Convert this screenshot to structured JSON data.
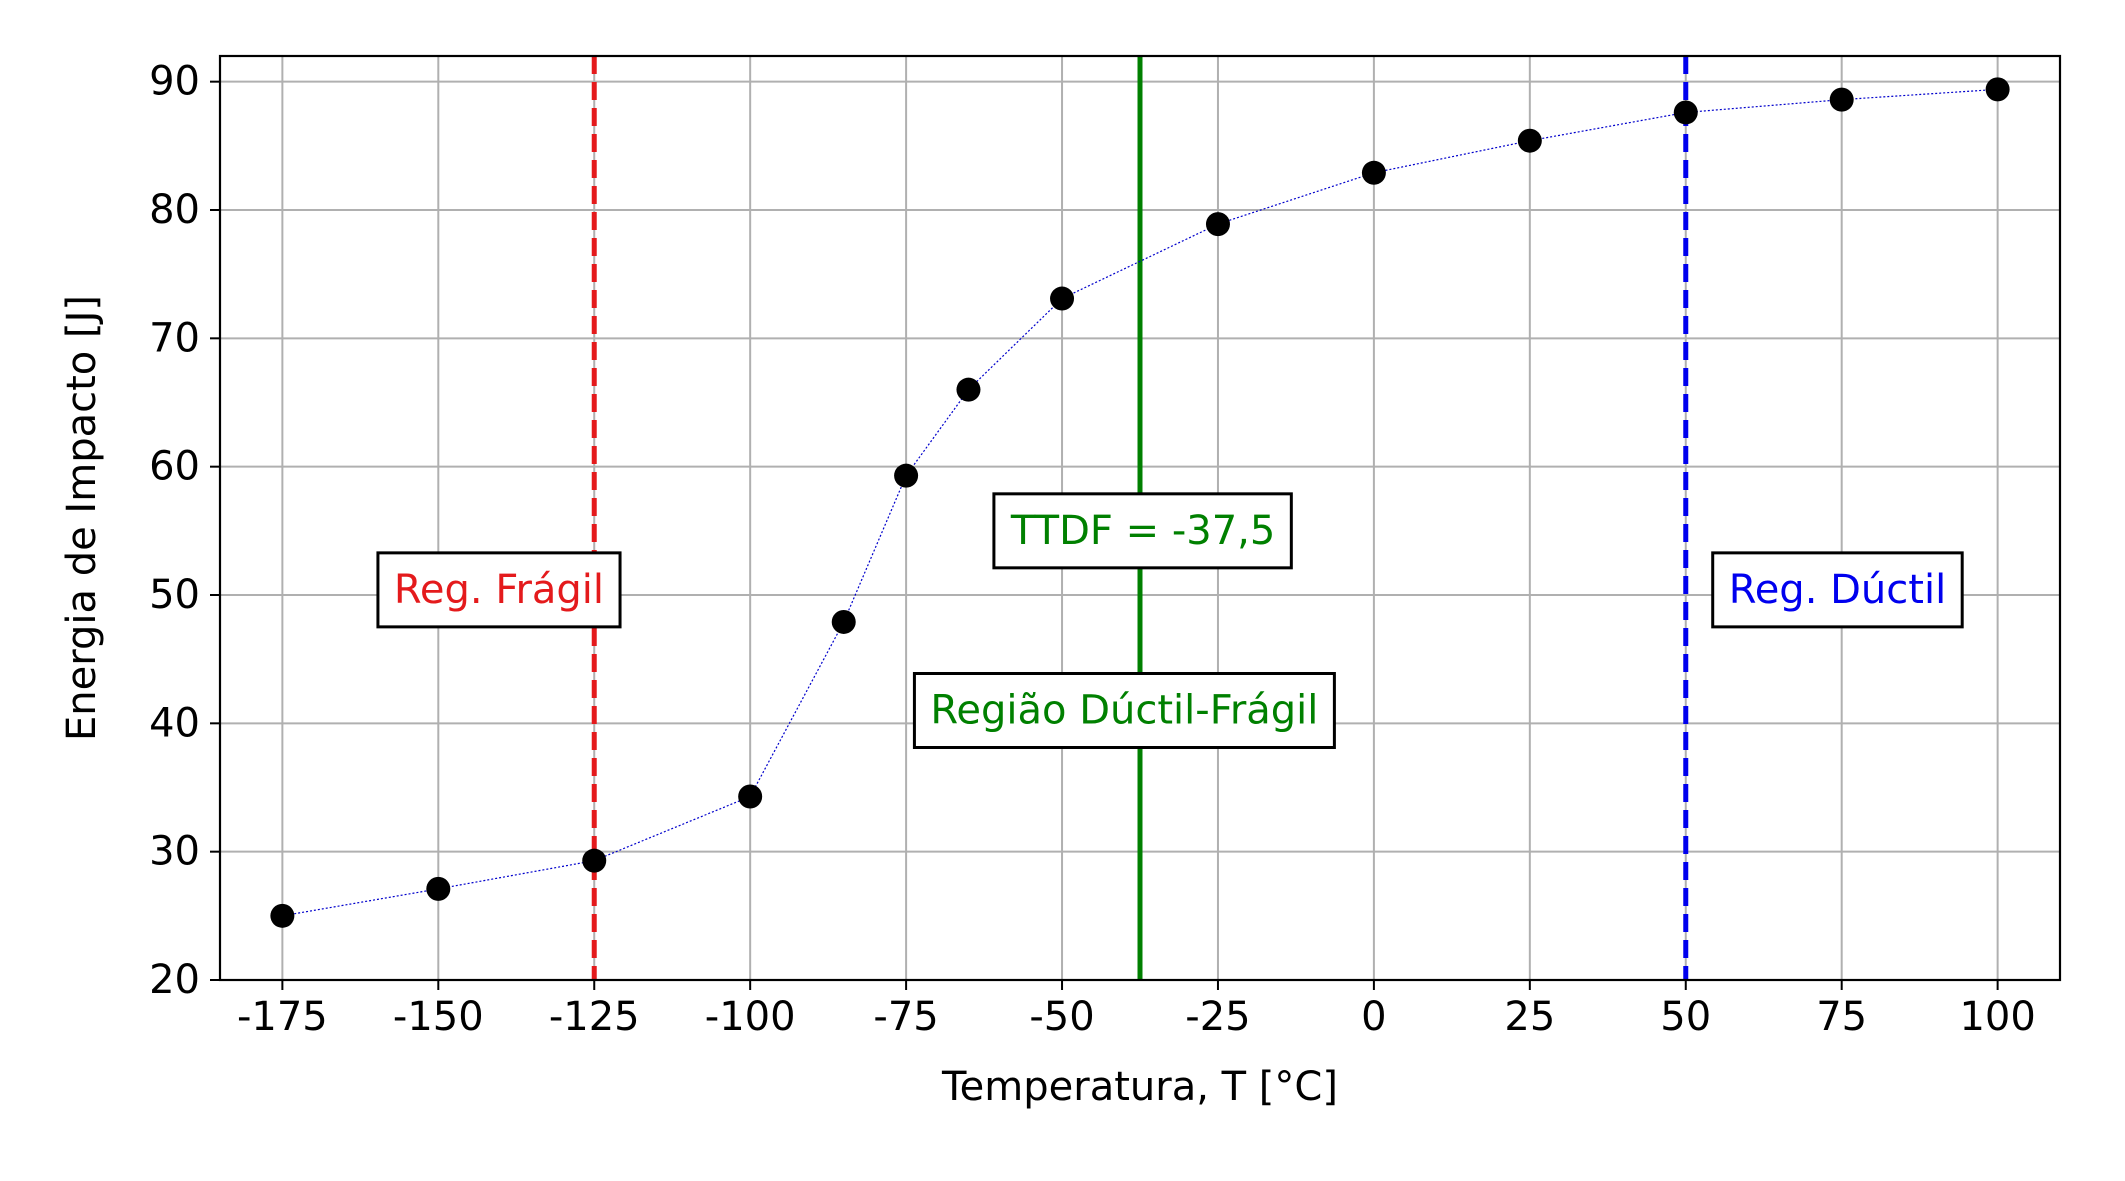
{
  "chart_data": {
    "type": "scatter",
    "xlabel": "Temperatura, T [°C]",
    "ylabel": "Energia de Impacto [J]",
    "xlim": [
      -185,
      110
    ],
    "ylim": [
      20,
      92
    ],
    "x_ticks": [
      -175,
      -150,
      -125,
      -100,
      -75,
      -50,
      -25,
      0,
      25,
      50,
      75,
      100
    ],
    "y_ticks": [
      20,
      30,
      40,
      50,
      60,
      70,
      80,
      90
    ],
    "grid": true,
    "series": [
      {
        "x": [
          -175,
          -150,
          -125,
          -100,
          -85,
          -75,
          -65,
          -50,
          -25,
          0,
          25,
          50,
          75,
          100
        ],
        "y": [
          25.0,
          27.1,
          29.3,
          34.3,
          47.9,
          59.3,
          66.0,
          73.1,
          78.9,
          82.9,
          85.4,
          87.6,
          88.6,
          89.4
        ],
        "marker_color": "#000000",
        "line_color": "#0000cc",
        "line_style": "dotted"
      }
    ],
    "vlines": [
      {
        "x": -125,
        "color": "#e41a1c",
        "style": "dashed"
      },
      {
        "x": -37.5,
        "color": "#008000",
        "style": "solid"
      },
      {
        "x": 50,
        "color": "#0000ee",
        "style": "dashed"
      }
    ],
    "annotations": [
      {
        "text": "Reg. Frágil",
        "color": "#e41a1c"
      },
      {
        "text": "TTDF = -37,5",
        "color": "#008000"
      },
      {
        "text": "Região Dúctil-Frágil",
        "color": "#008000"
      },
      {
        "text": "Reg. Dúctil",
        "color": "#0000ee"
      }
    ]
  }
}
